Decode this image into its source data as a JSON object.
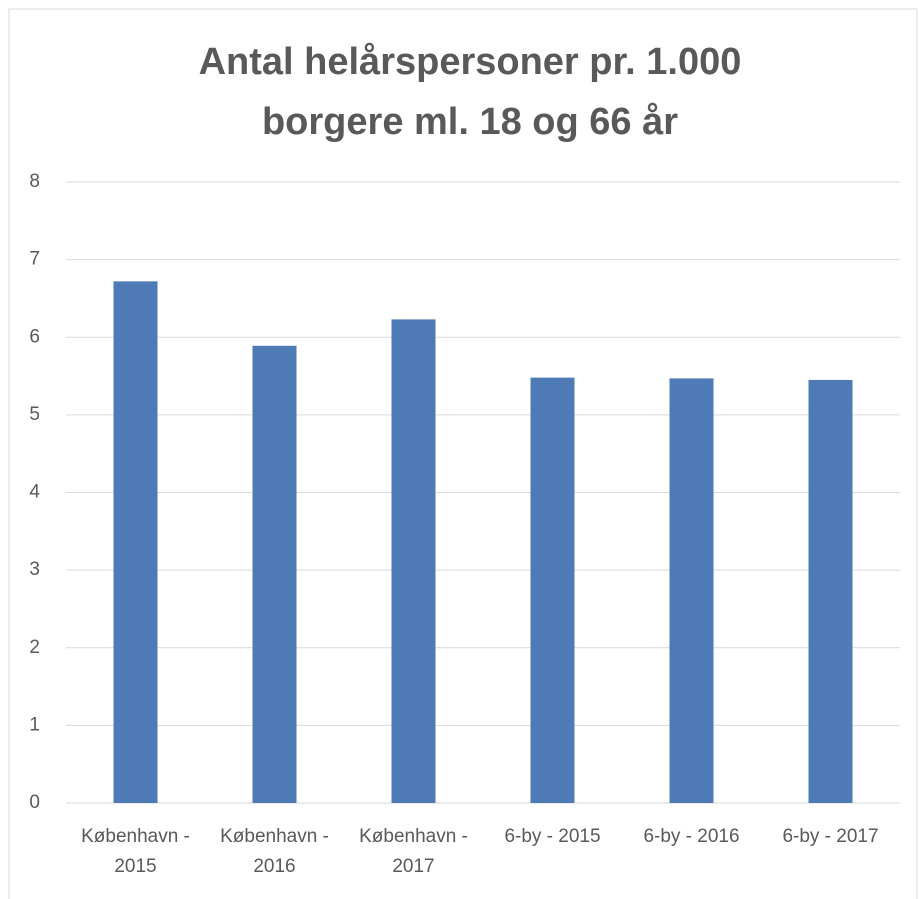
{
  "chart_data": {
    "type": "bar",
    "title": [
      "Antal helårspersoner pr. 1.000",
      "borgere ml. 18 og 66 år"
    ],
    "categories": [
      "København - 2015",
      "København - 2016",
      "København - 2017",
      "6-by - 2015",
      "6-by - 2016",
      "6-by - 2017"
    ],
    "values": [
      6.72,
      5.89,
      6.23,
      5.48,
      5.47,
      5.45
    ],
    "color": "#4e7ab5",
    "ylim": [
      0,
      8
    ],
    "yticks": [
      0,
      1,
      2,
      3,
      4,
      5,
      6,
      7,
      8
    ],
    "grid": true
  }
}
